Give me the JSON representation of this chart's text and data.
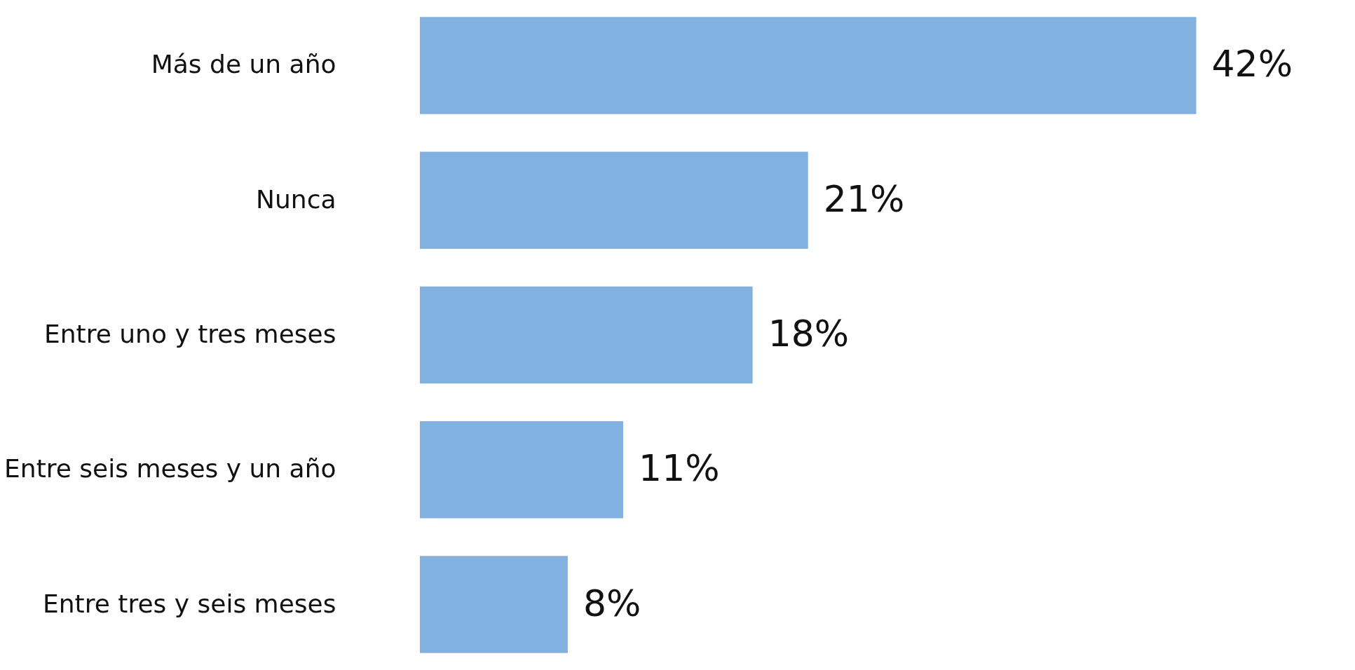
{
  "chart_data": {
    "type": "bar",
    "orientation": "horizontal",
    "categories": [
      "Más de un año",
      "Nunca",
      "Entre uno y tres meses",
      "Entre seis meses y un año",
      "Entre tres y seis meses"
    ],
    "values": [
      42,
      21,
      18,
      11,
      8
    ],
    "value_labels": [
      "42%",
      "21%",
      "18%",
      "11%",
      "8%"
    ],
    "color": "#82b1e0",
    "grid": false
  }
}
